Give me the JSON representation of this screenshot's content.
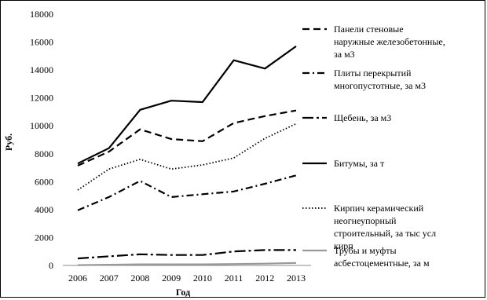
{
  "chart_data": {
    "type": "line",
    "title": "",
    "xlabel": "Год",
    "ylabel": "Руб.",
    "ylim": [
      0,
      18000
    ],
    "yticks": [
      0,
      2000,
      4000,
      6000,
      8000,
      10000,
      12000,
      14000,
      16000,
      18000
    ],
    "x": [
      "2006",
      "2007",
      "2008",
      "2009",
      "2010",
      "2011",
      "2012",
      "2013"
    ],
    "grid": false,
    "legend_position": "right",
    "series": [
      {
        "name": "Панели стеновые наружные железобетонные, за м3",
        "style": "dashed",
        "color": "#000000",
        "values": [
          7150,
          8150,
          9750,
          9050,
          8900,
          10200,
          10700,
          11100
        ]
      },
      {
        "name": "Плиты перекрытий многопустотные, за м3",
        "style": "dashdot",
        "color": "#000000",
        "values": [
          3950,
          4900,
          6050,
          4900,
          5100,
          5300,
          5850,
          6450
        ]
      },
      {
        "name": "Щебень, за м3",
        "style": "longdashdot",
        "color": "#000000",
        "values": [
          500,
          650,
          800,
          750,
          750,
          1000,
          1100,
          1100
        ]
      },
      {
        "name": "Битумы, за т",
        "style": "solid",
        "color": "#000000",
        "values": [
          7300,
          8400,
          11150,
          11800,
          11700,
          14700,
          14100,
          15700
        ]
      },
      {
        "name": "Кирпич керамический неогнеупорный строительный, за тыс усл кирп",
        "style": "dotted",
        "color": "#000000",
        "values": [
          5400,
          6900,
          7600,
          6900,
          7200,
          7700,
          9100,
          10150
        ]
      },
      {
        "name": "Трубы и муфты асбестоцементные, за м",
        "style": "solid",
        "color": "#999999",
        "values": [
          20,
          50,
          80,
          80,
          80,
          100,
          130,
          180
        ]
      }
    ]
  }
}
